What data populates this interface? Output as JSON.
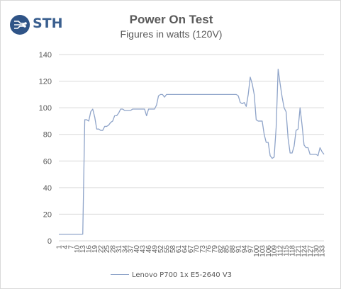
{
  "logo": {
    "text": "STH",
    "icon": "sth-circuit-logo-icon",
    "color": "#2f5487"
  },
  "chart_data": {
    "type": "line",
    "title": "Power On Test",
    "subtitle": "Figures in watts (120V)",
    "xlabel": "",
    "ylabel": "",
    "ylim": [
      0,
      140
    ],
    "yticks": [
      0,
      20,
      40,
      60,
      80,
      100,
      120,
      140
    ],
    "x": [
      1,
      2,
      3,
      4,
      5,
      6,
      7,
      8,
      9,
      10,
      11,
      12,
      13,
      14,
      15,
      16,
      17,
      18,
      19,
      20,
      21,
      22,
      23,
      24,
      25,
      26,
      27,
      28,
      29,
      30,
      31,
      32,
      33,
      34,
      35,
      36,
      37,
      38,
      39,
      40,
      41,
      42,
      43,
      44,
      45,
      46,
      47,
      48,
      49,
      50,
      51,
      52,
      53,
      54,
      55,
      56,
      57,
      58,
      59,
      60,
      61,
      62,
      63,
      64,
      65,
      66,
      67,
      68,
      69,
      70,
      71,
      72,
      73,
      74,
      75,
      76,
      77,
      78,
      79,
      80,
      81,
      82,
      83,
      84,
      85,
      86,
      87,
      88,
      89,
      90,
      91,
      92,
      93,
      94,
      95,
      96,
      97,
      98,
      99,
      100,
      101,
      102,
      103,
      104,
      105,
      106,
      107,
      108,
      109,
      110,
      111,
      112,
      113,
      114,
      115,
      116,
      117,
      118,
      119,
      120,
      121,
      122,
      123,
      124,
      125,
      126,
      127,
      128,
      129,
      130,
      131,
      132,
      133,
      134
    ],
    "xticks": [
      "1",
      "4",
      "7",
      "10",
      "13",
      "16",
      "19",
      "22",
      "25",
      "28",
      "31",
      "34",
      "37",
      "40",
      "43",
      "46",
      "49",
      "52",
      "55",
      "58",
      "61",
      "64",
      "67",
      "70",
      "73",
      "76",
      "79",
      "82",
      "85",
      "88",
      "91",
      "94",
      "97",
      "100",
      "103",
      "106",
      "109",
      "112",
      "115",
      "118",
      "121",
      "124",
      "127",
      "130",
      "133"
    ],
    "grid": true,
    "legend_position": "bottom",
    "series": [
      {
        "name": "Lenovo P700 1x E5-2640 V3",
        "color": "#8fa4c9",
        "values": [
          5,
          5,
          5,
          5,
          5,
          5,
          5,
          5,
          5,
          5,
          5,
          5,
          5,
          91,
          91,
          90,
          97,
          99,
          93,
          84,
          84,
          83,
          83,
          86,
          86,
          87,
          89,
          90,
          94,
          94,
          96,
          99,
          99,
          98,
          98,
          98,
          98,
          99,
          99,
          99,
          99,
          99,
          99,
          99,
          94,
          99,
          99,
          99,
          99,
          102,
          109,
          110,
          110,
          108,
          110,
          110,
          110,
          110,
          110,
          110,
          110,
          110,
          110,
          110,
          110,
          110,
          110,
          110,
          110,
          110,
          110,
          110,
          110,
          110,
          110,
          110,
          110,
          110,
          110,
          110,
          110,
          110,
          110,
          110,
          110,
          110,
          110,
          110,
          110,
          110,
          109,
          104,
          103,
          104,
          101,
          110,
          123,
          118,
          110,
          91,
          90,
          90,
          90,
          80,
          74,
          74,
          64,
          62,
          63,
          85,
          129,
          118,
          108,
          100,
          97,
          77,
          66,
          66,
          71,
          83,
          84,
          100,
          87,
          72,
          70,
          70,
          65,
          65,
          65,
          65,
          64,
          70,
          67,
          65
        ]
      }
    ]
  },
  "colors": {
    "grid": "#d9d9d9",
    "axis_text": "#595959",
    "line": "#8fa4c9"
  }
}
